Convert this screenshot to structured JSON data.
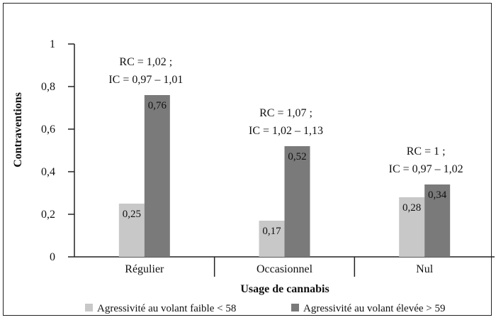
{
  "chart_data": {
    "type": "bar",
    "xlabel": "Usage de cannabis",
    "ylabel": "Contraventions",
    "ylim": [
      0,
      1
    ],
    "yticks": [
      "0",
      "0,2",
      "0,4",
      "0,6",
      "0,8",
      "1"
    ],
    "categories": [
      "Régulier",
      "Occasionnel",
      "Nul"
    ],
    "series": [
      {
        "name": "Agressivité au volant faible < 58",
        "color": "#c8c8c8",
        "values": [
          0.25,
          0.17,
          0.28
        ],
        "labels": [
          "0,25",
          "0,17",
          "0,28"
        ]
      },
      {
        "name": "Agressivité au volant élevée > 59",
        "color": "#7a7a7a",
        "values": [
          0.76,
          0.52,
          0.34
        ],
        "labels": [
          "0,76",
          "0,52",
          "0,34"
        ]
      }
    ],
    "annotations": [
      {
        "line1": "RC = 1,02 ;",
        "line2": "IC = 0,97 – 1,01"
      },
      {
        "line1": "RC = 1,07 ;",
        "line2": "IC = 1,02 – 1,13"
      },
      {
        "line1": "RC = 1 ;",
        "line2": "IC = 0,97 – 1,02"
      }
    ],
    "legend_position": "bottom",
    "grid": false
  }
}
